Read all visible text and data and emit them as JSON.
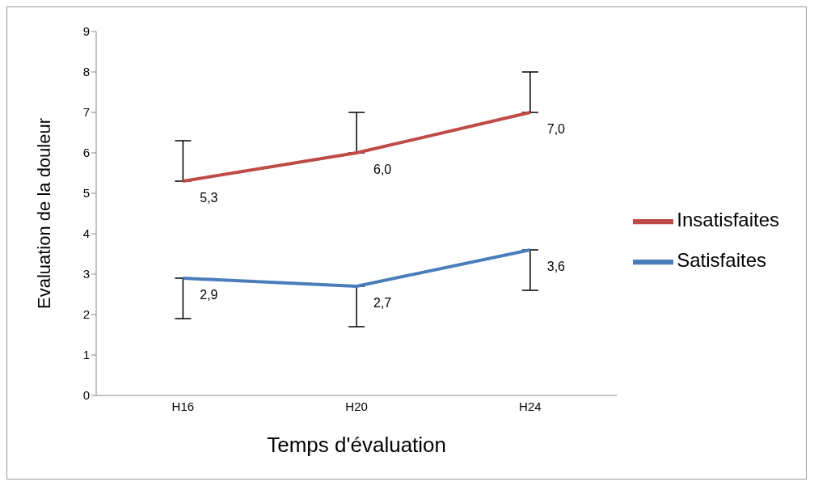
{
  "chart_data": {
    "type": "line",
    "xlabel": "Temps d'évaluation",
    "ylabel": "Evaluation de la douleur",
    "categories": [
      "H16",
      "H20",
      "H24"
    ],
    "series": [
      {
        "name": "Satisfaites",
        "color": "#4a7ebb",
        "values": [
          2.9,
          2.7,
          3.6
        ],
        "errors": [
          [
            1.9,
            2.9
          ],
          [
            1.7,
            2.7
          ],
          [
            2.6,
            3.6
          ]
        ],
        "value_labels": [
          "2,9",
          "2,7",
          "3,6"
        ]
      },
      {
        "name": "Insatisfaites",
        "color": "#be4b48",
        "values": [
          5.3,
          6.0,
          7.0
        ],
        "errors": [
          [
            5.3,
            6.3
          ],
          [
            6.0,
            7.0
          ],
          [
            7.0,
            8.0
          ]
        ],
        "value_labels": [
          "5,3",
          "6,0",
          "7,0"
        ]
      }
    ],
    "ylim": [
      0,
      9
    ],
    "yticks": [
      0,
      1,
      2,
      3,
      4,
      5,
      6,
      7,
      8,
      9
    ],
    "grid": false,
    "legend": "right",
    "marker": "none",
    "line_style": "solid"
  }
}
